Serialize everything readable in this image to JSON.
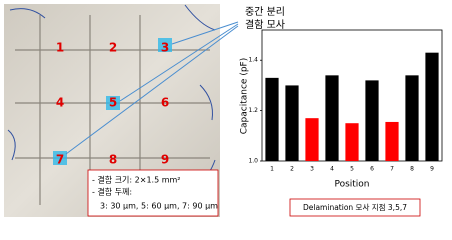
{
  "photo": {
    "positions": [
      "1",
      "2",
      "3",
      "4",
      "5",
      "6",
      "7",
      "8",
      "9"
    ],
    "callout": [
      "중간 분리",
      "결함 모사"
    ],
    "info": [
      "- 결함 크기: 2×1.5 mm²",
      "- 결함 두께:",
      "3: 30 μm, 5: 60 μm, 7: 90 μm"
    ]
  },
  "chart_data": {
    "type": "bar",
    "x_label": "Position",
    "y_label": "Capacitance (pF)",
    "categories": [
      "1",
      "2",
      "3",
      "4",
      "5",
      "6",
      "7",
      "8",
      "9"
    ],
    "values": [
      1.33,
      1.3,
      1.17,
      1.34,
      1.15,
      1.32,
      1.155,
      1.34,
      1.43
    ],
    "colors": [
      "#000000",
      "#000000",
      "#ff0000",
      "#000000",
      "#ff0000",
      "#000000",
      "#ff0000",
      "#000000",
      "#000000"
    ],
    "ylim": [
      1.0,
      1.52
    ],
    "yticks": [
      {
        "value": 1.0,
        "label": "1.0"
      },
      1.2,
      1.4
    ],
    "annotation": "Delamination 모사 지점 3,5,7"
  }
}
